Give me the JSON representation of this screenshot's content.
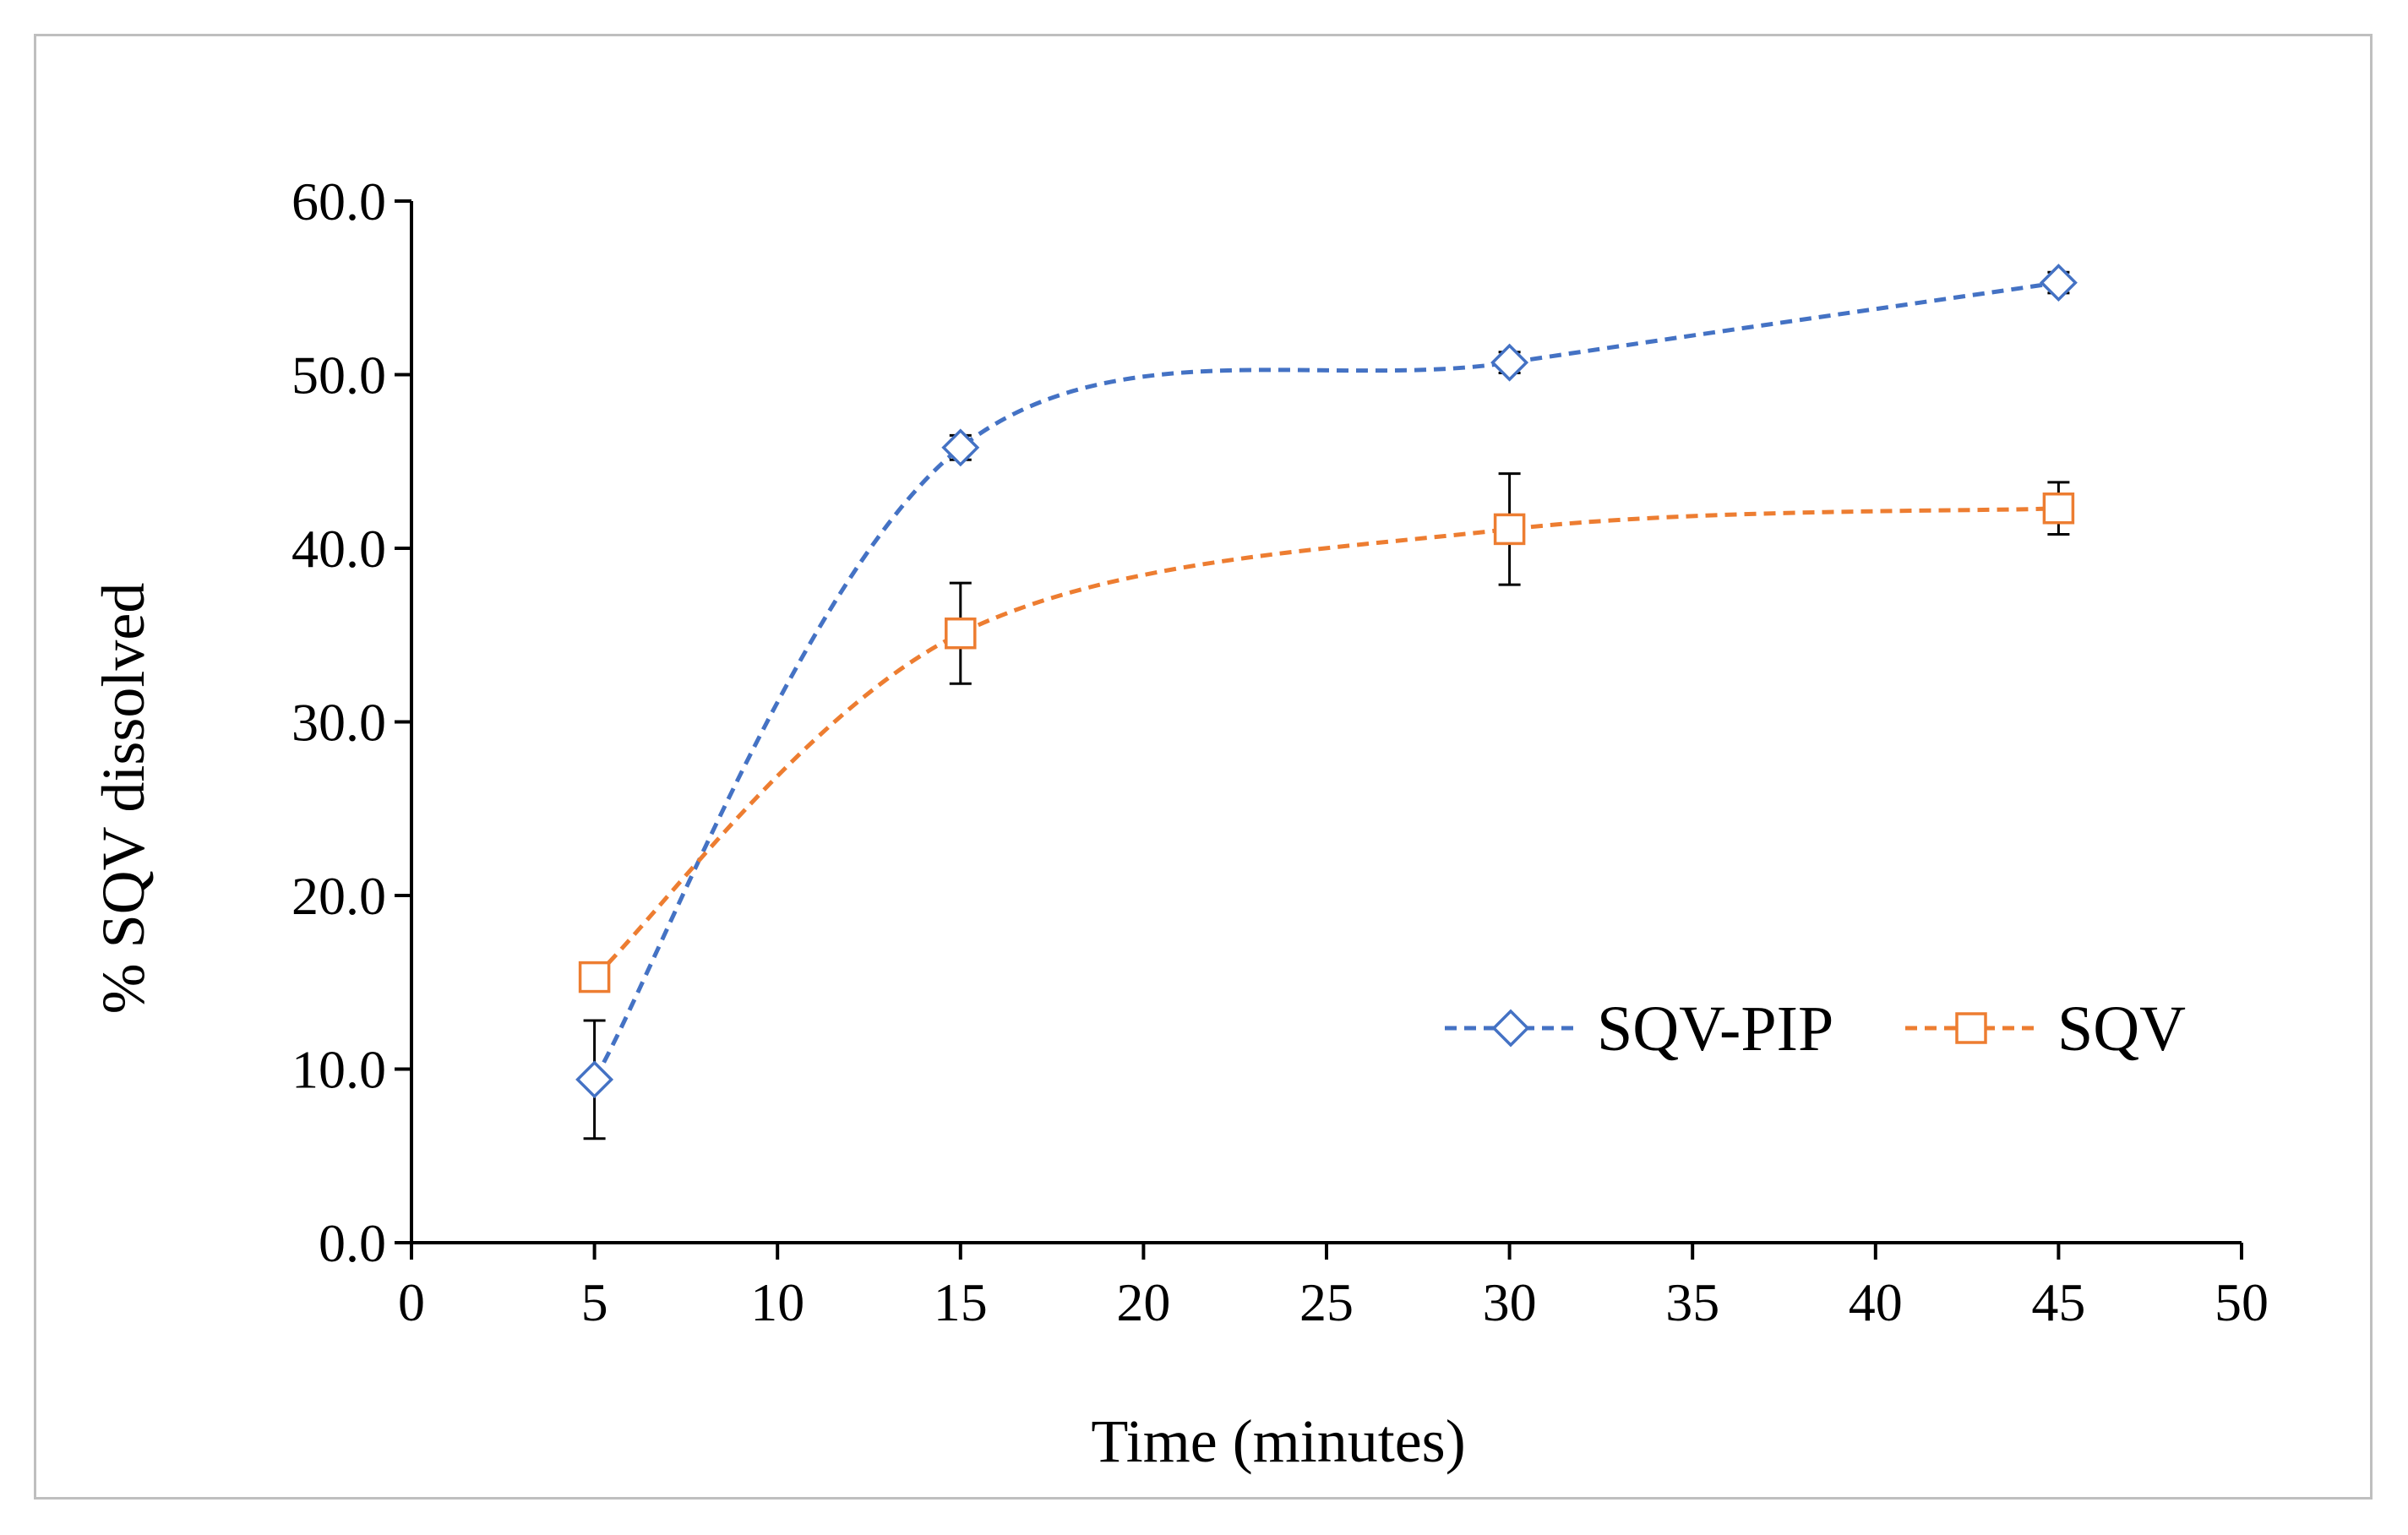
{
  "chart_data": {
    "type": "line",
    "title": "",
    "xlabel": "Time (minutes)",
    "ylabel": "% SQV dissolved",
    "xlim": [
      0,
      50
    ],
    "ylim": [
      0,
      60
    ],
    "x_ticks": [
      0,
      5,
      10,
      15,
      20,
      25,
      30,
      35,
      40,
      45,
      50
    ],
    "x_tick_labels": [
      "0",
      "5",
      "10",
      "15",
      "20",
      "25",
      "30",
      "35",
      "40",
      "45",
      "50"
    ],
    "y_ticks": [
      0,
      10,
      20,
      30,
      40,
      50,
      60
    ],
    "y_tick_labels": [
      "0.0",
      "10.0",
      "20.0",
      "30.0",
      "40.0",
      "50.0",
      "60.0"
    ],
    "grid": false,
    "legend_position": "bottom-right",
    "series": [
      {
        "name": "SQV-PIP",
        "color": "#4472C4",
        "marker": "diamond",
        "line_style": "dashed smooth",
        "x": [
          5,
          15,
          30,
          45
        ],
        "y": [
          9.4,
          45.8,
          50.7,
          55.3
        ],
        "error": [
          3.4,
          0.7,
          0.6,
          0.6
        ]
      },
      {
        "name": "SQV",
        "color": "#ED7D31",
        "marker": "square",
        "line_style": "dashed smooth",
        "x": [
          5,
          15,
          30,
          45
        ],
        "y": [
          15.3,
          35.1,
          41.1,
          42.3
        ],
        "error": [
          0.3,
          2.9,
          3.2,
          1.5
        ]
      }
    ]
  }
}
